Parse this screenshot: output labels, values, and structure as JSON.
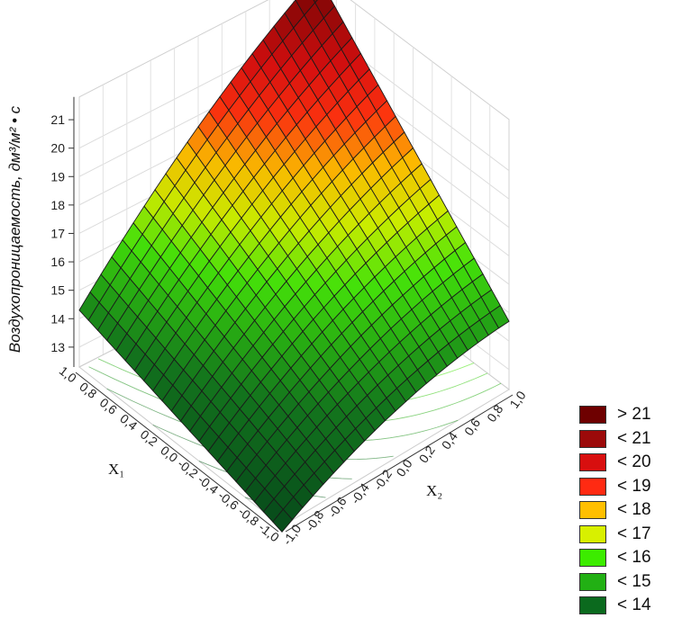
{
  "chart_data": {
    "type": "surface3d",
    "zlabel": "Воздухопроницаемость, дм³/м² • с",
    "xlabel": "X₁",
    "ylabel": "X₂",
    "x1_ticks": [
      "1,0",
      "0,8",
      "0,6",
      "0,4",
      "0,2",
      "0,0",
      "-0,2",
      "-0,4",
      "-0,6",
      "-0,8",
      "-1,0"
    ],
    "x2_ticks": [
      "-1,0",
      "-0,8",
      "-0,6",
      "-0,4",
      "-0,2",
      "0,0",
      "0,2",
      "0,4",
      "0,6",
      "0,8",
      "1,0"
    ],
    "z_ticks": [
      "13",
      "14",
      "15",
      "16",
      "17",
      "18",
      "19",
      "20",
      "21"
    ],
    "xlim": [
      -1,
      1
    ],
    "ylim": [
      -1,
      1
    ],
    "zlim": [
      12.3,
      21.8
    ],
    "corner_values": {
      "x1_pos_x2_neg": 14.5,
      "x1_neg_x2_neg": 12.3,
      "x1_neg_x2_pos": 14.9,
      "x1_pos_x2_pos": 22.0
    },
    "grid": true,
    "legend_position": "bottom-right",
    "legend": [
      {
        "label": "> 21",
        "color": "#6e0000"
      },
      {
        "label": "< 21",
        "color": "#9c0a0a"
      },
      {
        "label": "< 20",
        "color": "#d80f0f"
      },
      {
        "label": "< 19",
        "color": "#ff2a12"
      },
      {
        "label": "< 18",
        "color": "#ffbf00"
      },
      {
        "label": "< 17",
        "color": "#d8f000"
      },
      {
        "label": "< 16",
        "color": "#3cec00"
      },
      {
        "label": "< 15",
        "color": "#22b014"
      },
      {
        "label": "< 14",
        "color": "#0b6a1e"
      }
    ]
  }
}
